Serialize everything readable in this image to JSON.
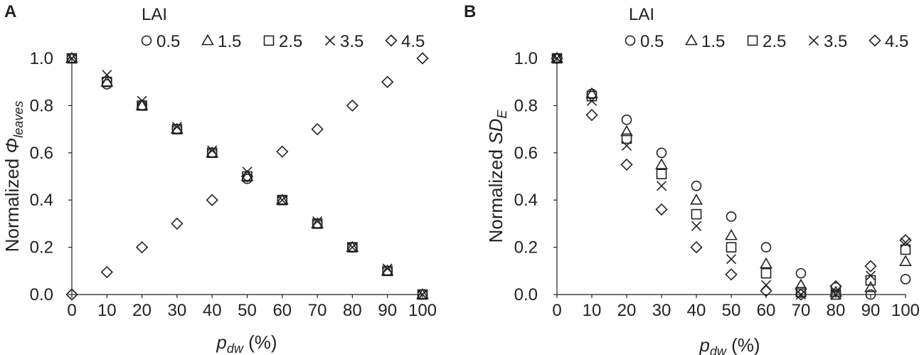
{
  "figure": {
    "panels": [
      {
        "letter": "A",
        "ylabel_prefix": "Normalized ",
        "ylabel_symbol": "Φ",
        "ylabel_sub": "leaves",
        "xlabel_main": "p",
        "xlabel_sub": "dw",
        "xlabel_unit": " (%)"
      },
      {
        "letter": "B",
        "ylabel_prefix": "Normalized ",
        "ylabel_symbol": "SD",
        "ylabel_sub": "E",
        "xlabel_main": "p",
        "xlabel_sub": "dw",
        "xlabel_unit": " (%)"
      }
    ],
    "legend_title": "LAI",
    "legend_entries": [
      {
        "marker": "circle",
        "label": "0.5"
      },
      {
        "marker": "triangle",
        "label": "1.5"
      },
      {
        "marker": "square",
        "label": "2.5"
      },
      {
        "marker": "cross",
        "label": "3.5"
      },
      {
        "marker": "diamond",
        "label": "4.5"
      }
    ],
    "colors": {
      "marker": "#222222",
      "axis": "#222222",
      "background": "#ffffff"
    }
  },
  "chart_data": [
    {
      "type": "scatter",
      "title": "",
      "xlabel": "p_dw (%)",
      "ylabel": "Normalized Φ_leaves",
      "xlim": [
        0,
        100
      ],
      "ylim": [
        0,
        1
      ],
      "xticks": [
        "0",
        "10",
        "20",
        "30",
        "40",
        "50",
        "60",
        "70",
        "80",
        "90",
        "100"
      ],
      "yticks": [
        "0.0",
        "0.2",
        "0.4",
        "0.6",
        "0.8",
        "1.0"
      ],
      "grid": false,
      "legend_placement": "top",
      "x": [
        0,
        10,
        20,
        30,
        40,
        50,
        60,
        70,
        80,
        90,
        100
      ],
      "series": [
        {
          "name": "0.5",
          "marker": "circle",
          "values": [
            1.0,
            0.89,
            0.8,
            0.7,
            0.6,
            0.49,
            0.4,
            0.3,
            0.2,
            0.1,
            0.0
          ]
        },
        {
          "name": "1.5",
          "marker": "triangle",
          "values": [
            1.0,
            0.9,
            0.8,
            0.7,
            0.6,
            0.5,
            0.4,
            0.3,
            0.2,
            0.1,
            0.0
          ]
        },
        {
          "name": "2.5",
          "marker": "square",
          "values": [
            1.0,
            0.9,
            0.8,
            0.7,
            0.6,
            0.5,
            0.4,
            0.3,
            0.2,
            0.1,
            0.0
          ]
        },
        {
          "name": "3.5",
          "marker": "cross",
          "values": [
            1.0,
            0.93,
            0.82,
            0.71,
            0.61,
            0.52,
            0.4,
            0.31,
            0.2,
            0.11,
            0.0
          ]
        },
        {
          "name": "4.5",
          "marker": "diamond",
          "values": [
            0.0,
            0.095,
            0.2,
            0.3,
            0.4,
            0.5,
            0.605,
            0.7,
            0.8,
            0.9,
            1.0
          ]
        }
      ]
    },
    {
      "type": "scatter",
      "title": "",
      "xlabel": "p_dw (%)",
      "ylabel": "Normalized SD_E",
      "xlim": [
        0,
        100
      ],
      "ylim": [
        0,
        1
      ],
      "xticks": [
        "0",
        "10",
        "20",
        "30",
        "40",
        "50",
        "60",
        "70",
        "80",
        "90",
        "100"
      ],
      "yticks": [
        "0.0",
        "0.2",
        "0.4",
        "0.6",
        "0.8",
        "1.0"
      ],
      "grid": false,
      "legend_placement": "top",
      "x": [
        0,
        10,
        20,
        30,
        40,
        50,
        60,
        70,
        80,
        90,
        100
      ],
      "series": [
        {
          "name": "0.5",
          "marker": "circle",
          "values": [
            1.0,
            0.85,
            0.74,
            0.6,
            0.46,
            0.33,
            0.2,
            0.09,
            0.03,
            0.0,
            0.065
          ]
        },
        {
          "name": "1.5",
          "marker": "triangle",
          "values": [
            1.0,
            0.85,
            0.69,
            0.55,
            0.4,
            0.25,
            0.13,
            0.04,
            0.01,
            0.03,
            0.14
          ]
        },
        {
          "name": "2.5",
          "marker": "square",
          "values": [
            1.0,
            0.84,
            0.66,
            0.51,
            0.34,
            0.2,
            0.09,
            0.01,
            0.0,
            0.06,
            0.19
          ]
        },
        {
          "name": "3.5",
          "marker": "cross",
          "values": [
            1.0,
            0.82,
            0.63,
            0.46,
            0.29,
            0.15,
            0.04,
            0.0,
            0.0,
            0.08,
            0.22
          ]
        },
        {
          "name": "4.5",
          "marker": "diamond",
          "values": [
            1.0,
            0.76,
            0.55,
            0.36,
            0.2,
            0.085,
            0.015,
            0.0,
            0.035,
            0.12,
            0.23
          ]
        }
      ]
    }
  ]
}
